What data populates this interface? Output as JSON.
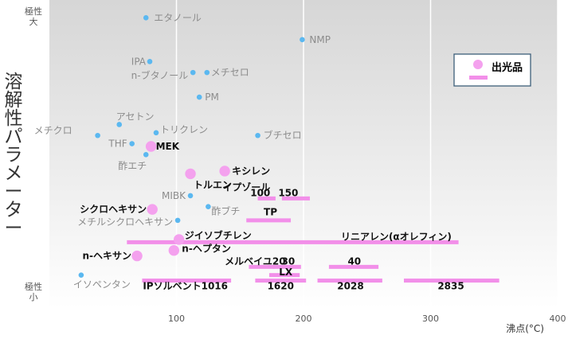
{
  "chart_data": {
    "type": "scatter",
    "title": "",
    "xlabel": "沸点(°C)",
    "ylabel": "溶解性パラメーター",
    "xlim": [
      0,
      400
    ],
    "xticks": [
      100,
      200,
      300,
      400
    ],
    "y_axis_top": [
      "極性",
      "大"
    ],
    "y_axis_bottom": [
      "極性",
      "小"
    ],
    "grid": "vertical",
    "legend": {
      "position": "top-right",
      "label": "出光品"
    },
    "colors": {
      "general": "#5bb8f0",
      "idemitsu_marker": "#f4a1ee",
      "idemitsu_bar": "#f28fe9",
      "legend_border": "#3d5f7a"
    },
    "series": [
      {
        "name": "",
        "style": "small-dot",
        "points": [
          {
            "label": "エタノール",
            "x": 76,
            "y": 97
          },
          {
            "label": "NMP",
            "x": 199,
            "y": 89
          },
          {
            "label": "IPA",
            "x": 79,
            "y": 81
          },
          {
            "label": "n-ブタノール",
            "x": 113,
            "y": 77
          },
          {
            "label": "メチセロ",
            "x": 124,
            "y": 77
          },
          {
            "label": "PM",
            "x": 118,
            "y": 68
          },
          {
            "label": "アセトン",
            "x": 55,
            "y": 58
          },
          {
            "label": "メチクロ",
            "x": 38,
            "y": 54
          },
          {
            "label": "トリクレン",
            "x": 84,
            "y": 55
          },
          {
            "label": "ブチセロ",
            "x": 164,
            "y": 54
          },
          {
            "label": "THF",
            "x": 65,
            "y": 51
          },
          {
            "label": "酢エチ",
            "x": 76,
            "y": 47
          },
          {
            "label": "MIBK",
            "x": 111,
            "y": 32
          },
          {
            "label": "酢ブチ",
            "x": 125,
            "y": 28
          },
          {
            "label": "メチルシクロヘキサン",
            "x": 101,
            "y": 23
          },
          {
            "label": "イソペンタン",
            "x": 25,
            "y": 3
          }
        ]
      },
      {
        "name": "出光品",
        "style": "large-dot",
        "points": [
          {
            "label": "MEK",
            "x": 80,
            "y": 50
          },
          {
            "label": "キシレン",
            "x": 138,
            "y": 41
          },
          {
            "label": "トルエン",
            "x": 111,
            "y": 40
          },
          {
            "label": "シクロヘキサン",
            "x": 81,
            "y": 27
          },
          {
            "label": "ジイソブチレン",
            "x": 102,
            "y": 16
          },
          {
            "label": "n-ヘプタン",
            "x": 98,
            "y": 12
          },
          {
            "label": "n-ヘキサン",
            "x": 69,
            "y": 10
          }
        ]
      },
      {
        "name": "出光品",
        "style": "range-bar",
        "ranges": [
          {
            "label": "イプゾール100",
            "x_start": 164,
            "x_end": 178,
            "y": 31
          },
          {
            "label": "イプゾール150",
            "x_start": 183,
            "x_end": 205,
            "y": 31
          },
          {
            "label": "TP",
            "x_start": 155,
            "x_end": 190,
            "y": 23
          },
          {
            "label": "リニアレン(αオレフィン)",
            "x_start": 61,
            "x_end": 322,
            "y": 15
          },
          {
            "label": "メルベイユ20",
            "x_start": 157,
            "x_end": 177,
            "y": 6
          },
          {
            "label": "メルベイユ30",
            "x_start": 176,
            "x_end": 198,
            "y": 6
          },
          {
            "label": "メルベイユ40",
            "x_start": 220,
            "x_end": 259,
            "y": 6
          },
          {
            "label": "LX",
            "x_start": 173,
            "x_end": 197,
            "y": 3
          },
          {
            "label": "IPソルベント1016",
            "x_start": 73,
            "x_end": 143,
            "y": 1
          },
          {
            "label": "IPソルベント1620",
            "x_start": 162,
            "x_end": 202,
            "y": 1
          },
          {
            "label": "IPソルベント2028",
            "x_start": 211,
            "x_end": 262,
            "y": 1
          },
          {
            "label": "IPソルベント2835",
            "x_start": 279,
            "x_end": 354,
            "y": 1
          }
        ]
      }
    ],
    "annotations": [
      {
        "text": "イプゾール",
        "x": 155,
        "y": 35
      },
      {
        "text": "100",
        "x": 166,
        "y": 33
      },
      {
        "text": "150",
        "x": 188,
        "y": 33
      },
      {
        "text": "TP",
        "x": 174,
        "y": 26
      },
      {
        "text": "リニアレン(αオレフィン)",
        "x": 273,
        "y": 17
      },
      {
        "text": "メルベイユ20",
        "x": 162,
        "y": 8
      },
      {
        "text": "30",
        "x": 188,
        "y": 8
      },
      {
        "text": "40",
        "x": 240,
        "y": 8
      },
      {
        "text": "LX",
        "x": 186,
        "y": 4
      },
      {
        "text": "IPソルベント1016",
        "x": 107,
        "y": -1
      },
      {
        "text": "1620",
        "x": 182,
        "y": -1
      },
      {
        "text": "2028",
        "x": 237,
        "y": -1
      },
      {
        "text": "2835",
        "x": 316,
        "y": -1
      }
    ]
  }
}
